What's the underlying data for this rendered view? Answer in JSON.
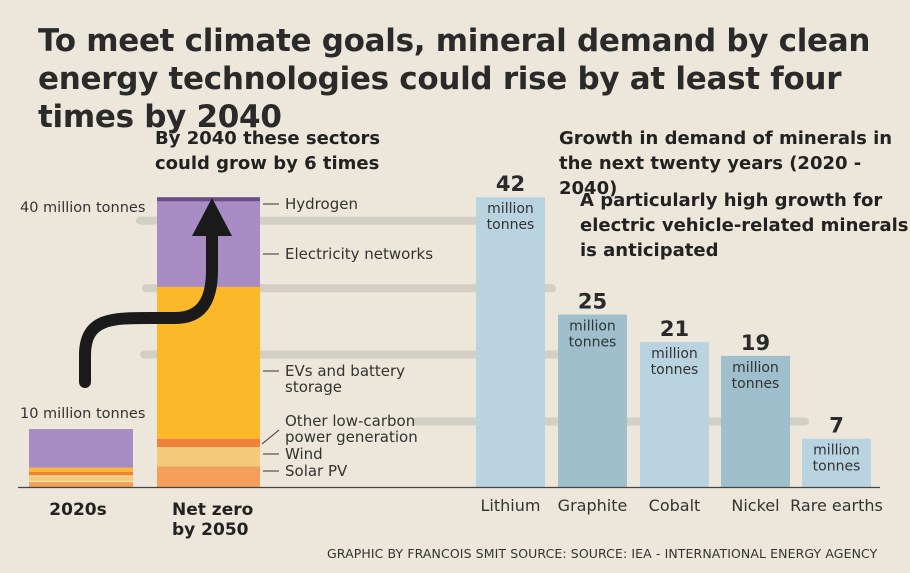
{
  "title": "To meet climate goals, mineral demand by clean energy technologies could rise by at least four times by 2040",
  "left_subtitle": [
    "By 2040 these sectors",
    "could grow by 6 times"
  ],
  "right_subtitle": [
    "Growth in demand of minerals in",
    "the next twenty years (2020 - 2040)"
  ],
  "right_note": [
    "A particularly high growth for",
    "electric vehicle-related minerals",
    "is anticipated"
  ],
  "credit": "GRAPHIC BY FRANCOIS SMIT  SOURCE: SOURCE: IEA - INTERNATIONAL ENERGY AGENCY",
  "colors": {
    "background": "#ece7da",
    "hydrogen": "#6b4c8a",
    "electricity_networks": "#a98cc4",
    "evs_battery": "#fbb829",
    "other_low_carbon": "#f0813a",
    "wind": "#f5c97a",
    "solar_pv": "#f5a05a",
    "mineral_light": "#b9d3e0",
    "mineral_dark": "#9fbfcc",
    "arrow": "#1a1a1a",
    "guide": "#d2cfc4"
  },
  "chart_data": [
    {
      "type": "bar",
      "stacked": true,
      "title": "By 2040 these sectors could grow by 6 times",
      "categories": [
        "2020s",
        "Net zero by 2050"
      ],
      "category_lines": [
        [
          "2020s"
        ],
        [
          "Net zero",
          "by 2050"
        ]
      ],
      "ticks": [
        {
          "value": 10,
          "label": "10 million tonnes"
        },
        {
          "value": 40,
          "label": "40 million tonnes"
        }
      ],
      "ylim": [
        0,
        43
      ],
      "series": [
        {
          "name": "Solar PV",
          "label_lines": [
            "Solar PV"
          ],
          "values": [
            0.8,
            3.0
          ]
        },
        {
          "name": "Wind",
          "label_lines": [
            "Wind"
          ],
          "values": [
            0.8,
            2.8
          ]
        },
        {
          "name": "Other low-carbon power generation",
          "label_lines": [
            "Other low-carbon",
            "power generation"
          ],
          "values": [
            0.6,
            1.2
          ]
        },
        {
          "name": "EVs and battery storage",
          "label_lines": [
            "EVs and battery",
            "storage"
          ],
          "values": [
            0.6,
            22.0
          ]
        },
        {
          "name": "Electricity networks",
          "label_lines": [
            "Electricity networks"
          ],
          "values": [
            5.6,
            12.4
          ]
        },
        {
          "name": "Hydrogen",
          "label_lines": [
            "Hydrogen"
          ],
          "values": [
            0.0,
            0.6
          ]
        }
      ],
      "annotation": "growth arrow from 2020s to Net zero by 2050"
    },
    {
      "type": "bar",
      "title": "Growth in demand of minerals in the next twenty years (2020 - 2040)",
      "categories": [
        "Lithium",
        "Graphite",
        "Cobalt",
        "Nickel",
        "Rare earths"
      ],
      "values": [
        42,
        25,
        21,
        19,
        7
      ],
      "unit_lines": [
        "million",
        "tonnes"
      ],
      "ylim": [
        0,
        43
      ]
    }
  ]
}
